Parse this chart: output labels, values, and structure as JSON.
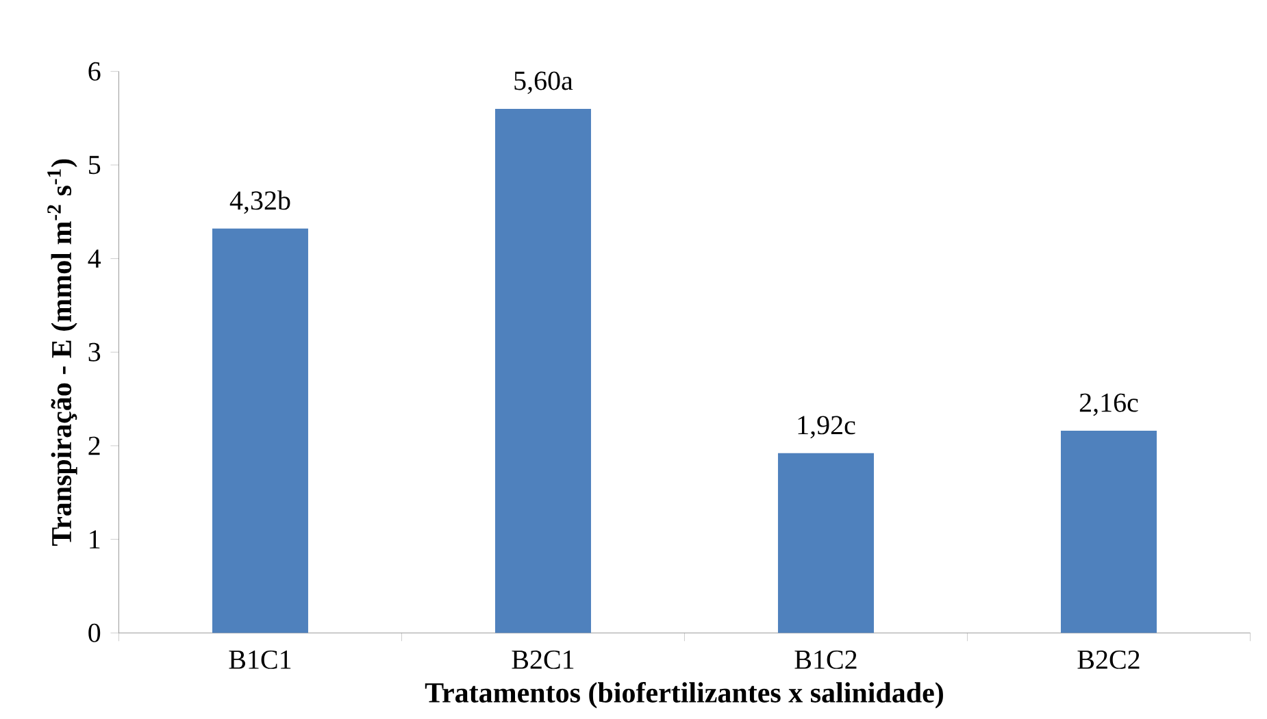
{
  "chart_data": {
    "type": "bar",
    "xlabel": "Tratamentos (biofertilizantes x salinidade)",
    "ylabel": "Transpiração - E (mmol m$^{-2}$ s$^{-1}$)",
    "categories": [
      "B1C1",
      "B2C1",
      "B1C2",
      "B2C2"
    ],
    "values": [
      4.32,
      5.6,
      1.92,
      2.16
    ],
    "value_labels": [
      "4,32b",
      "5,60a",
      "1,92c",
      "2,16c"
    ],
    "color": "#4f81bd",
    "ylim": [
      0,
      6
    ],
    "yticks": [
      0,
      1,
      2,
      3,
      4,
      5,
      6
    ]
  }
}
